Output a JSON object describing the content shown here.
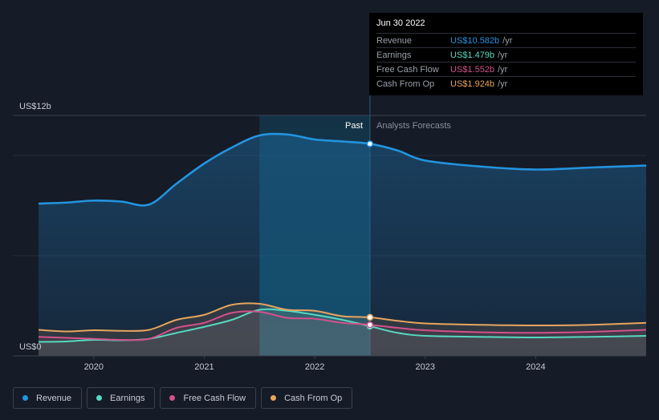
{
  "chart_data": {
    "type": "area",
    "x_ticks": [
      "2020",
      "2021",
      "2022",
      "2023",
      "2024"
    ],
    "y_axis": {
      "top_label": "US$12b",
      "bottom_label": "US$0",
      "ylim": [
        0,
        12
      ]
    },
    "regions": {
      "past_label": "Past",
      "forecast_label": "Analysts Forecasts",
      "divider_date": 2022.5
    },
    "series": [
      {
        "name": "Revenue",
        "color": "#2394df",
        "points": [
          [
            2019.5,
            7.6
          ],
          [
            2019.75,
            7.65
          ],
          [
            2020.0,
            7.75
          ],
          [
            2020.25,
            7.7
          ],
          [
            2020.5,
            7.55
          ],
          [
            2020.75,
            8.6
          ],
          [
            2021.0,
            9.6
          ],
          [
            2021.25,
            10.4
          ],
          [
            2021.5,
            11.0
          ],
          [
            2021.75,
            11.05
          ],
          [
            2022.0,
            10.8
          ],
          [
            2022.25,
            10.7
          ],
          [
            2022.5,
            10.582
          ],
          [
            2022.75,
            10.25
          ],
          [
            2023.0,
            9.75
          ],
          [
            2023.5,
            9.45
          ],
          [
            2024.0,
            9.3
          ],
          [
            2024.5,
            9.4
          ],
          [
            2025.0,
            9.5
          ]
        ]
      },
      {
        "name": "Earnings",
        "color": "#56d9c1",
        "points": [
          [
            2019.5,
            0.7
          ],
          [
            2019.75,
            0.72
          ],
          [
            2020.0,
            0.8
          ],
          [
            2020.25,
            0.78
          ],
          [
            2020.5,
            0.85
          ],
          [
            2020.75,
            1.15
          ],
          [
            2021.0,
            1.45
          ],
          [
            2021.25,
            1.8
          ],
          [
            2021.5,
            2.3
          ],
          [
            2021.75,
            2.25
          ],
          [
            2022.0,
            2.05
          ],
          [
            2022.25,
            1.8
          ],
          [
            2022.5,
            1.479
          ],
          [
            2022.75,
            1.15
          ],
          [
            2023.0,
            1.0
          ],
          [
            2023.5,
            0.95
          ],
          [
            2024.0,
            0.92
          ],
          [
            2024.5,
            0.95
          ],
          [
            2025.0,
            1.0
          ]
        ]
      },
      {
        "name": "Free Cash Flow",
        "color": "#d2518b",
        "points": [
          [
            2019.5,
            0.95
          ],
          [
            2019.75,
            0.9
          ],
          [
            2020.0,
            0.85
          ],
          [
            2020.25,
            0.8
          ],
          [
            2020.5,
            0.85
          ],
          [
            2020.75,
            1.4
          ],
          [
            2021.0,
            1.65
          ],
          [
            2021.25,
            2.15
          ],
          [
            2021.5,
            2.2
          ],
          [
            2021.75,
            1.9
          ],
          [
            2022.0,
            1.85
          ],
          [
            2022.25,
            1.65
          ],
          [
            2022.5,
            1.552
          ],
          [
            2022.75,
            1.4
          ],
          [
            2023.0,
            1.28
          ],
          [
            2023.5,
            1.18
          ],
          [
            2024.0,
            1.15
          ],
          [
            2024.5,
            1.2
          ],
          [
            2025.0,
            1.3
          ]
        ]
      },
      {
        "name": "Cash From Op",
        "color": "#e8a55d",
        "points": [
          [
            2019.5,
            1.3
          ],
          [
            2019.75,
            1.22
          ],
          [
            2020.0,
            1.28
          ],
          [
            2020.25,
            1.25
          ],
          [
            2020.5,
            1.3
          ],
          [
            2020.75,
            1.8
          ],
          [
            2021.0,
            2.05
          ],
          [
            2021.25,
            2.55
          ],
          [
            2021.5,
            2.6
          ],
          [
            2021.75,
            2.3
          ],
          [
            2022.0,
            2.25
          ],
          [
            2022.25,
            1.98
          ],
          [
            2022.5,
            1.924
          ],
          [
            2022.75,
            1.75
          ],
          [
            2023.0,
            1.62
          ],
          [
            2023.5,
            1.55
          ],
          [
            2024.0,
            1.52
          ],
          [
            2024.5,
            1.55
          ],
          [
            2025.0,
            1.65
          ]
        ]
      }
    ],
    "grid": true,
    "legend_position": "bottom-left"
  },
  "tooltip": {
    "date": "Jun 30 2022",
    "rows": [
      {
        "label": "Revenue",
        "value": "US$10.582b",
        "unit": "/yr",
        "color": "#2394df"
      },
      {
        "label": "Earnings",
        "value": "US$1.479b",
        "unit": "/yr",
        "color": "#56d9c1"
      },
      {
        "label": "Free Cash Flow",
        "value": "US$1.552b",
        "unit": "/yr",
        "color": "#d2518b"
      },
      {
        "label": "Cash From Op",
        "value": "US$1.924b",
        "unit": "/yr",
        "color": "#e8a55d"
      }
    ]
  },
  "legend": [
    {
      "label": "Revenue",
      "color": "#2394df"
    },
    {
      "label": "Earnings",
      "color": "#56d9c1"
    },
    {
      "label": "Free Cash Flow",
      "color": "#d2518b"
    },
    {
      "label": "Cash From Op",
      "color": "#e8a55d"
    }
  ]
}
